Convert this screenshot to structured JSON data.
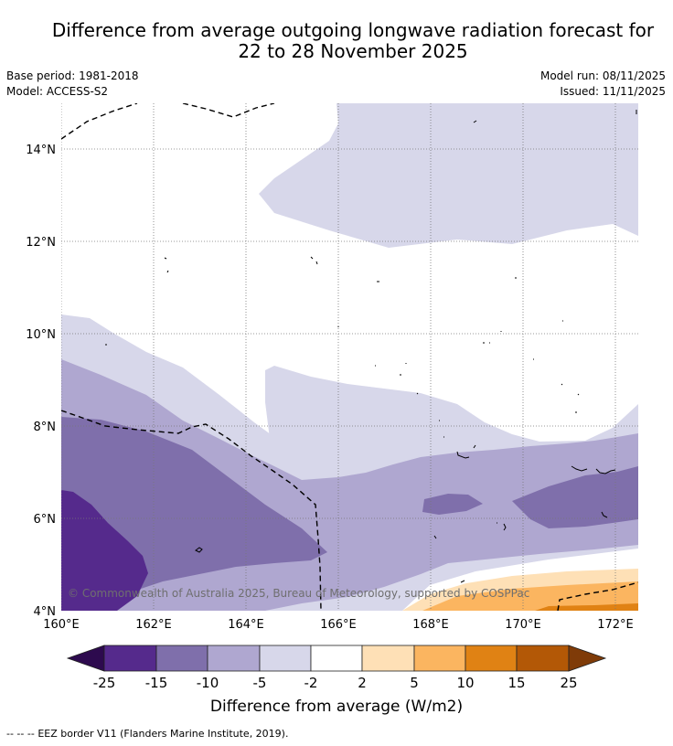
{
  "title": {
    "line1": "Difference from average outgoing longwave radiation forecast for",
    "line2": "22 to 28 November 2025"
  },
  "meta": {
    "base_period": "Base period: 1981-2018",
    "model": "Model: ACCESS-S2",
    "model_run": "Model run: 08/11/2025",
    "issued": "Issued: 11/11/2025"
  },
  "map": {
    "x_ticks": [
      "160°E",
      "162°E",
      "164°E",
      "166°E",
      "168°E",
      "170°E",
      "172°E"
    ],
    "y_ticks": [
      "14°N",
      "12°N",
      "10°N",
      "8°N",
      "6°N",
      "4°N"
    ],
    "copyright": "© Commonwealth of Australia 2025, Bureau of Meteorology, supported by COSPPac"
  },
  "colorbar": {
    "ticks": [
      "-25",
      "-15",
      "-10",
      "-5",
      "-2",
      "2",
      "5",
      "10",
      "15",
      "25"
    ],
    "label": "Difference from average (W/m2)",
    "colors": [
      "#2d0a4e",
      "#552a8c",
      "#7f6fab",
      "#afa7d0",
      "#d7d7ea",
      "#ffffff",
      "#fee0b6",
      "#fbb560",
      "#e08214",
      "#b35806",
      "#7f3b08"
    ]
  },
  "footer": {
    "legend_symbol": "--  --  --",
    "legend_text": "EEZ border V11 (Flanders Marine Institute, 2019)."
  }
}
